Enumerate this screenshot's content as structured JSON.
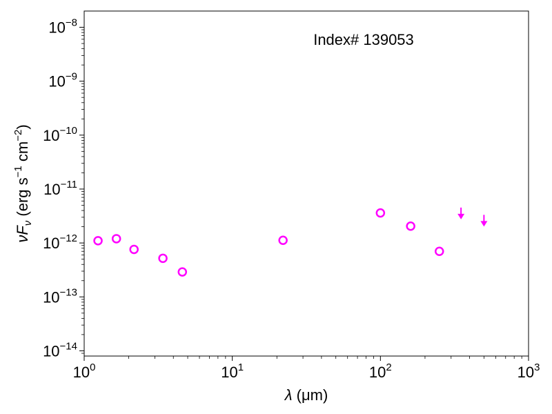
{
  "chart_data": {
    "type": "scatter",
    "title": "",
    "annotation": "Index# 139053",
    "xlabel": {
      "symbol": "λ",
      "unit": " (μm)"
    },
    "ylabel": {
      "text": "νF",
      "sub": "ν",
      "unit_pre": " (erg s",
      "unit_exp1": "−1",
      "unit_mid": " cm",
      "unit_exp2": "−2",
      "unit_post": ")"
    },
    "xscale": "log",
    "yscale": "log",
    "xlim": [
      1,
      1000
    ],
    "ylim": [
      8e-15,
      2e-08
    ],
    "x_ticks": [
      {
        "value": 1,
        "base": "10",
        "exp": "0"
      },
      {
        "value": 10,
        "base": "10",
        "exp": "1"
      },
      {
        "value": 100,
        "base": "10",
        "exp": "2"
      },
      {
        "value": 1000,
        "base": "10",
        "exp": "3"
      }
    ],
    "y_ticks": [
      {
        "value": 1e-14,
        "base": "10",
        "exp": "−14"
      },
      {
        "value": 1e-13,
        "base": "10",
        "exp": "−13"
      },
      {
        "value": 1e-12,
        "base": "10",
        "exp": "−12"
      },
      {
        "value": 1e-11,
        "base": "10",
        "exp": "−11"
      },
      {
        "value": 1e-10,
        "base": "10",
        "exp": "−10"
      },
      {
        "value": 1e-09,
        "base": "10",
        "exp": "−9"
      },
      {
        "value": 1e-08,
        "base": "10",
        "exp": "−8"
      }
    ],
    "marker_color": "#ff00ff",
    "points": [
      {
        "x": 1.24,
        "y": 1.1e-12
      },
      {
        "x": 1.65,
        "y": 1.2e-12
      },
      {
        "x": 2.17,
        "y": 7.6e-13
      },
      {
        "x": 3.4,
        "y": 5.2e-13
      },
      {
        "x": 4.6,
        "y": 2.9e-13
      },
      {
        "x": 22,
        "y": 1.12e-12
      },
      {
        "x": 100,
        "y": 3.6e-12
      },
      {
        "x": 160,
        "y": 2.05e-12
      },
      {
        "x": 250,
        "y": 7e-13
      }
    ],
    "upper_limits": [
      {
        "x": 350,
        "y": 3e-12
      },
      {
        "x": 500,
        "y": 2.2e-12
      }
    ]
  }
}
